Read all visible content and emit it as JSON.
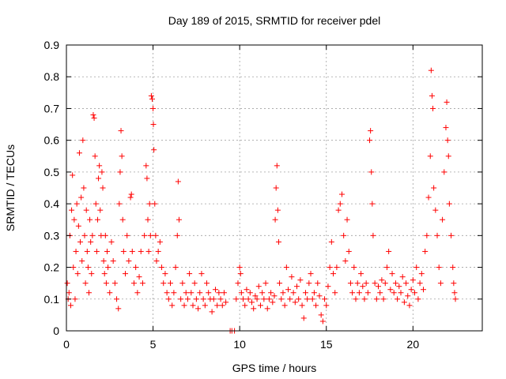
{
  "chart_data": {
    "type": "scatter",
    "title": "Day 189 of 2015, SRMTID for receiver pdel",
    "xlabel": "GPS time / hours",
    "ylabel": "SRMTID / TECUs",
    "xlim": [
      0,
      24
    ],
    "ylim": [
      0,
      0.9
    ],
    "xticks": [
      0,
      5,
      10,
      15,
      20
    ],
    "yticks": [
      0,
      0.1,
      0.2,
      0.3,
      0.4,
      0.5,
      0.6,
      0.7,
      0.8,
      0.9
    ],
    "grid": true,
    "marker": "+",
    "color": "#ff0000",
    "series": [
      {
        "name": "SRMTID",
        "points": [
          [
            0.05,
            0.15
          ],
          [
            0.1,
            0.1
          ],
          [
            0.15,
            0.12
          ],
          [
            0.2,
            0.3
          ],
          [
            0.25,
            0.08
          ],
          [
            0.3,
            0.38
          ],
          [
            0.35,
            0.49
          ],
          [
            0.4,
            0.2
          ],
          [
            0.45,
            0.35
          ],
          [
            0.5,
            0.1
          ],
          [
            0.55,
            0.25
          ],
          [
            0.6,
            0.4
          ],
          [
            0.65,
            0.18
          ],
          [
            0.7,
            0.33
          ],
          [
            0.75,
            0.56
          ],
          [
            0.8,
            0.28
          ],
          [
            0.85,
            0.42
          ],
          [
            0.9,
            0.22
          ],
          [
            0.95,
            0.6
          ],
          [
            1.0,
            0.45
          ],
          [
            1.05,
            0.3
          ],
          [
            1.1,
            0.15
          ],
          [
            1.15,
            0.38
          ],
          [
            1.2,
            0.25
          ],
          [
            1.25,
            0.2
          ],
          [
            1.3,
            0.12
          ],
          [
            1.35,
            0.35
          ],
          [
            1.4,
            0.28
          ],
          [
            1.45,
            0.18
          ],
          [
            1.5,
            0.3
          ],
          [
            1.55,
            0.68
          ],
          [
            1.6,
            0.67
          ],
          [
            1.65,
            0.55
          ],
          [
            1.7,
            0.4
          ],
          [
            1.75,
            0.25
          ],
          [
            1.8,
            0.35
          ],
          [
            1.85,
            0.48
          ],
          [
            1.9,
            0.52
          ],
          [
            1.95,
            0.38
          ],
          [
            2.0,
            0.3
          ],
          [
            2.05,
            0.5
          ],
          [
            2.1,
            0.45
          ],
          [
            2.15,
            0.22
          ],
          [
            2.2,
            0.18
          ],
          [
            2.25,
            0.3
          ],
          [
            2.3,
            0.15
          ],
          [
            2.35,
            0.25
          ],
          [
            2.4,
            0.2
          ],
          [
            2.5,
            0.12
          ],
          [
            2.6,
            0.28
          ],
          [
            2.7,
            0.22
          ],
          [
            2.8,
            0.15
          ],
          [
            2.9,
            0.1
          ],
          [
            3.0,
            0.07
          ],
          [
            3.05,
            0.4
          ],
          [
            3.1,
            0.5
          ],
          [
            3.15,
            0.63
          ],
          [
            3.2,
            0.55
          ],
          [
            3.25,
            0.35
          ],
          [
            3.3,
            0.25
          ],
          [
            3.4,
            0.18
          ],
          [
            3.5,
            0.3
          ],
          [
            3.6,
            0.22
          ],
          [
            3.7,
            0.42
          ],
          [
            3.75,
            0.43
          ],
          [
            3.8,
            0.25
          ],
          [
            3.9,
            0.15
          ],
          [
            4.0,
            0.2
          ],
          [
            4.1,
            0.12
          ],
          [
            4.2,
            0.17
          ],
          [
            4.3,
            0.25
          ],
          [
            4.4,
            0.15
          ],
          [
            4.5,
            0.3
          ],
          [
            4.6,
            0.52
          ],
          [
            4.65,
            0.48
          ],
          [
            4.7,
            0.35
          ],
          [
            4.75,
            0.25
          ],
          [
            4.8,
            0.4
          ],
          [
            4.85,
            0.3
          ],
          [
            4.9,
            0.74
          ],
          [
            4.95,
            0.73
          ],
          [
            5.0,
            0.7
          ],
          [
            5.02,
            0.65
          ],
          [
            5.05,
            0.57
          ],
          [
            5.1,
            0.4
          ],
          [
            5.15,
            0.3
          ],
          [
            5.2,
            0.22
          ],
          [
            5.3,
            0.25
          ],
          [
            5.4,
            0.28
          ],
          [
            5.5,
            0.2
          ],
          [
            5.6,
            0.15
          ],
          [
            5.7,
            0.18
          ],
          [
            5.8,
            0.12
          ],
          [
            5.9,
            0.1
          ],
          [
            6.0,
            0.15
          ],
          [
            6.1,
            0.08
          ],
          [
            6.2,
            0.12
          ],
          [
            6.3,
            0.2
          ],
          [
            6.4,
            0.3
          ],
          [
            6.45,
            0.47
          ],
          [
            6.5,
            0.35
          ],
          [
            6.6,
            0.1
          ],
          [
            6.7,
            0.15
          ],
          [
            6.8,
            0.08
          ],
          [
            6.9,
            0.12
          ],
          [
            7.0,
            0.1
          ],
          [
            7.1,
            0.18
          ],
          [
            7.2,
            0.12
          ],
          [
            7.3,
            0.08
          ],
          [
            7.4,
            0.15
          ],
          [
            7.5,
            0.1
          ],
          [
            7.6,
            0.07
          ],
          [
            7.7,
            0.12
          ],
          [
            7.8,
            0.18
          ],
          [
            7.9,
            0.1
          ],
          [
            8.0,
            0.08
          ],
          [
            8.1,
            0.15
          ],
          [
            8.2,
            0.12
          ],
          [
            8.3,
            0.1
          ],
          [
            8.4,
            0.06
          ],
          [
            8.5,
            0.1
          ],
          [
            8.6,
            0.13
          ],
          [
            8.7,
            0.08
          ],
          [
            8.8,
            0.12
          ],
          [
            8.9,
            0.1
          ],
          [
            9.0,
            0.08
          ],
          [
            9.1,
            0.12
          ],
          [
            9.2,
            0.09
          ],
          [
            9.45,
            0.0
          ],
          [
            9.55,
            0.0
          ],
          [
            9.7,
            0.0
          ],
          [
            9.8,
            0.1
          ],
          [
            9.9,
            0.15
          ],
          [
            10.0,
            0.2
          ],
          [
            10.05,
            0.18
          ],
          [
            10.1,
            0.12
          ],
          [
            10.2,
            0.1
          ],
          [
            10.3,
            0.08
          ],
          [
            10.4,
            0.13
          ],
          [
            10.5,
            0.1
          ],
          [
            10.6,
            0.12
          ],
          [
            10.7,
            0.09
          ],
          [
            10.8,
            0.07
          ],
          [
            10.9,
            0.11
          ],
          [
            11.0,
            0.1
          ],
          [
            11.1,
            0.14
          ],
          [
            11.2,
            0.08
          ],
          [
            11.3,
            0.12
          ],
          [
            11.4,
            0.1
          ],
          [
            11.5,
            0.15
          ],
          [
            11.6,
            0.07
          ],
          [
            11.7,
            0.1
          ],
          [
            11.8,
            0.12
          ],
          [
            11.9,
            0.09
          ],
          [
            12.0,
            0.11
          ],
          [
            12.05,
            0.35
          ],
          [
            12.1,
            0.45
          ],
          [
            12.15,
            0.52
          ],
          [
            12.2,
            0.38
          ],
          [
            12.25,
            0.28
          ],
          [
            12.3,
            0.15
          ],
          [
            12.4,
            0.1
          ],
          [
            12.5,
            0.12
          ],
          [
            12.6,
            0.08
          ],
          [
            12.7,
            0.2
          ],
          [
            12.8,
            0.13
          ],
          [
            12.9,
            0.1
          ],
          [
            13.0,
            0.17
          ],
          [
            13.1,
            0.12
          ],
          [
            13.2,
            0.09
          ],
          [
            13.3,
            0.14
          ],
          [
            13.4,
            0.1
          ],
          [
            13.5,
            0.16
          ],
          [
            13.6,
            0.08
          ],
          [
            13.7,
            0.04
          ],
          [
            13.8,
            0.12
          ],
          [
            13.9,
            0.1
          ],
          [
            14.0,
            0.15
          ],
          [
            14.1,
            0.18
          ],
          [
            14.2,
            0.1
          ],
          [
            14.3,
            0.12
          ],
          [
            14.4,
            0.08
          ],
          [
            14.5,
            0.15
          ],
          [
            14.6,
            0.11
          ],
          [
            14.7,
            0.05
          ],
          [
            14.8,
            0.03
          ],
          [
            14.9,
            0.1
          ],
          [
            15.0,
            0.08
          ],
          [
            15.1,
            0.14
          ],
          [
            15.2,
            0.2
          ],
          [
            15.3,
            0.28
          ],
          [
            15.4,
            0.18
          ],
          [
            15.5,
            0.12
          ],
          [
            15.6,
            0.2
          ],
          [
            15.7,
            0.38
          ],
          [
            15.8,
            0.4
          ],
          [
            15.9,
            0.43
          ],
          [
            16.0,
            0.3
          ],
          [
            16.1,
            0.22
          ],
          [
            16.2,
            0.35
          ],
          [
            16.3,
            0.25
          ],
          [
            16.4,
            0.15
          ],
          [
            16.5,
            0.12
          ],
          [
            16.6,
            0.2
          ],
          [
            16.7,
            0.1
          ],
          [
            16.8,
            0.15
          ],
          [
            16.9,
            0.12
          ],
          [
            17.0,
            0.18
          ],
          [
            17.1,
            0.14
          ],
          [
            17.2,
            0.1
          ],
          [
            17.3,
            0.15
          ],
          [
            17.4,
            0.12
          ],
          [
            17.5,
            0.6
          ],
          [
            17.55,
            0.63
          ],
          [
            17.6,
            0.5
          ],
          [
            17.65,
            0.4
          ],
          [
            17.7,
            0.3
          ],
          [
            17.8,
            0.15
          ],
          [
            17.9,
            0.1
          ],
          [
            18.0,
            0.14
          ],
          [
            18.1,
            0.12
          ],
          [
            18.2,
            0.16
          ],
          [
            18.3,
            0.1
          ],
          [
            18.4,
            0.15
          ],
          [
            18.5,
            0.2
          ],
          [
            18.6,
            0.25
          ],
          [
            18.7,
            0.13
          ],
          [
            18.8,
            0.18
          ],
          [
            18.9,
            0.12
          ],
          [
            19.0,
            0.15
          ],
          [
            19.1,
            0.1
          ],
          [
            19.2,
            0.14
          ],
          [
            19.3,
            0.12
          ],
          [
            19.4,
            0.17
          ],
          [
            19.5,
            0.09
          ],
          [
            19.6,
            0.15
          ],
          [
            19.7,
            0.11
          ],
          [
            19.8,
            0.08
          ],
          [
            19.9,
            0.13
          ],
          [
            20.0,
            0.16
          ],
          [
            20.1,
            0.12
          ],
          [
            20.2,
            0.2
          ],
          [
            20.3,
            0.1
          ],
          [
            20.4,
            0.15
          ],
          [
            20.5,
            0.18
          ],
          [
            20.6,
            0.13
          ],
          [
            20.7,
            0.25
          ],
          [
            20.8,
            0.3
          ],
          [
            20.9,
            0.42
          ],
          [
            21.0,
            0.55
          ],
          [
            21.05,
            0.82
          ],
          [
            21.1,
            0.74
          ],
          [
            21.15,
            0.7
          ],
          [
            21.2,
            0.45
          ],
          [
            21.3,
            0.38
          ],
          [
            21.4,
            0.3
          ],
          [
            21.5,
            0.2
          ],
          [
            21.6,
            0.15
          ],
          [
            21.7,
            0.35
          ],
          [
            21.8,
            0.5
          ],
          [
            21.9,
            0.64
          ],
          [
            21.95,
            0.72
          ],
          [
            22.0,
            0.6
          ],
          [
            22.05,
            0.55
          ],
          [
            22.1,
            0.4
          ],
          [
            22.2,
            0.3
          ],
          [
            22.3,
            0.2
          ],
          [
            22.35,
            0.15
          ],
          [
            22.4,
            0.12
          ],
          [
            22.45,
            0.1
          ]
        ]
      }
    ]
  }
}
